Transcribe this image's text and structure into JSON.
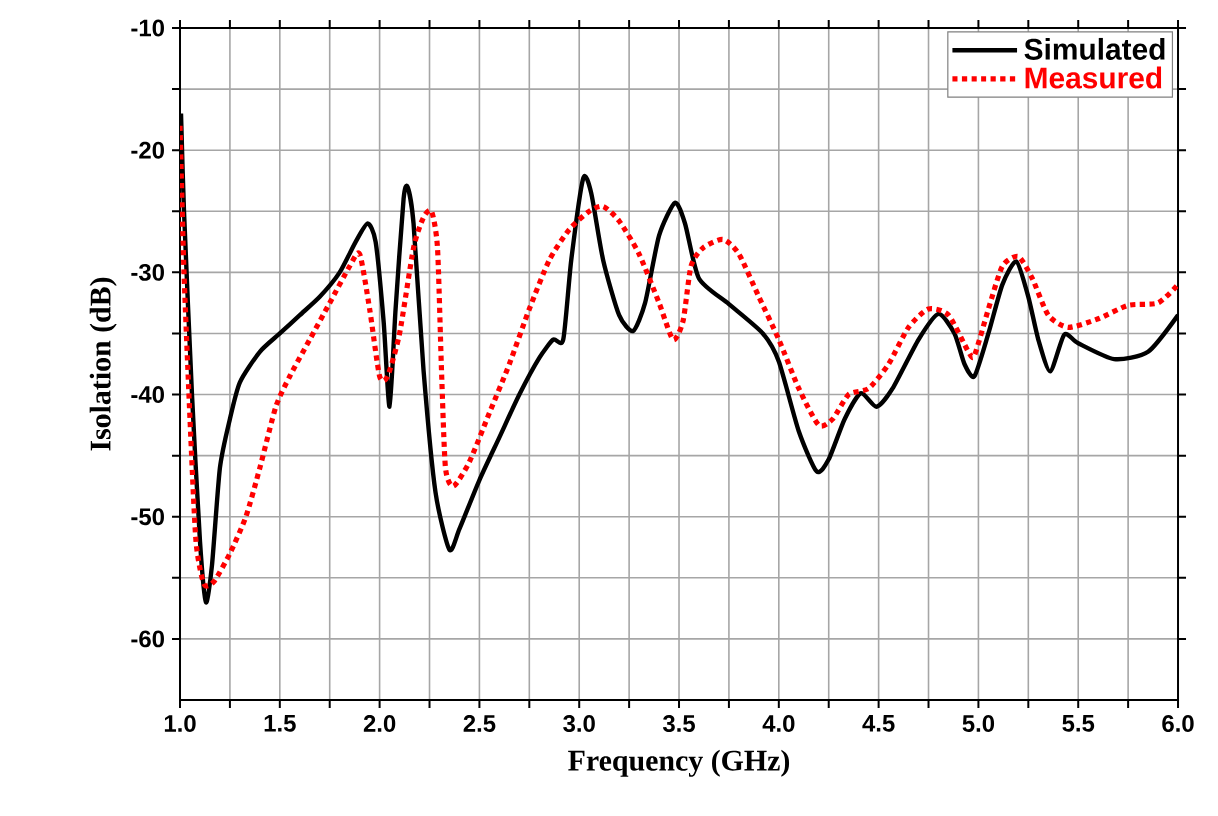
{
  "chart_data": {
    "type": "line",
    "xlabel": "Frequency (GHz)",
    "ylabel": "Isolation (dB)",
    "xlim": [
      1.0,
      6.0
    ],
    "ylim": [
      -65,
      -10
    ],
    "xticks": [
      {
        "value": 1.0,
        "label": "1.0"
      },
      {
        "value": 1.25,
        "label": null
      },
      1.5,
      {
        "value": 1.75,
        "label": null
      },
      {
        "value": 2.0,
        "label": "2.0"
      },
      {
        "value": 2.25,
        "label": null
      },
      2.5,
      {
        "value": 2.75,
        "label": null
      },
      {
        "value": 3.0,
        "label": "3.0"
      },
      {
        "value": 3.25,
        "label": null
      },
      3.5,
      {
        "value": 3.75,
        "label": null
      },
      {
        "value": 4.0,
        "label": "4.0"
      },
      {
        "value": 4.25,
        "label": null
      },
      4.5,
      {
        "value": 4.75,
        "label": null
      },
      {
        "value": 5.0,
        "label": "5.0"
      },
      {
        "value": 5.25,
        "label": null
      },
      5.5,
      {
        "value": 5.75,
        "label": null
      },
      {
        "value": 6.0,
        "label": "6.0"
      }
    ],
    "yticks": [
      -60,
      {
        "value": -55,
        "label": null
      },
      -50,
      {
        "value": -45,
        "label": null
      },
      -40,
      {
        "value": -35,
        "label": null
      },
      -30,
      {
        "value": -25,
        "label": null
      },
      -20,
      {
        "value": -15,
        "label": null
      },
      -10
    ],
    "grid": true,
    "legend": "top right",
    "series": [
      {
        "name": "Simulated",
        "color": "#000000",
        "line_style": "solid",
        "x": [
          1.005,
          1.02,
          1.06,
          1.1,
          1.13,
          1.16,
          1.2,
          1.25,
          1.3,
          1.4,
          1.5,
          1.6,
          1.7,
          1.8,
          1.88,
          1.94,
          1.98,
          2.02,
          2.05,
          2.08,
          2.12,
          2.14,
          2.17,
          2.22,
          2.28,
          2.35,
          2.4,
          2.5,
          2.6,
          2.7,
          2.8,
          2.87,
          2.92,
          2.96,
          3.02,
          3.06,
          3.12,
          3.2,
          3.27,
          3.33,
          3.4,
          3.48,
          3.53,
          3.6,
          3.75,
          3.92,
          4.0,
          4.1,
          4.19,
          4.25,
          4.33,
          4.41,
          4.49,
          4.57,
          4.7,
          4.8,
          4.88,
          4.93,
          4.98,
          5.05,
          5.12,
          5.19,
          5.25,
          5.3,
          5.36,
          5.43,
          5.5,
          5.68,
          5.85,
          6.0
        ],
        "values": [
          -17,
          -25,
          -40,
          -52,
          -57,
          -54,
          -46,
          -42,
          -39,
          -36.5,
          -35,
          -33.5,
          -32,
          -30,
          -27.5,
          -26,
          -27.5,
          -34,
          -41,
          -33,
          -24,
          -23,
          -26,
          -38,
          -48,
          -52.7,
          -51,
          -47,
          -43.5,
          -40,
          -37,
          -35.5,
          -35.5,
          -29,
          -22.3,
          -23.5,
          -29,
          -33.5,
          -34.8,
          -32.5,
          -27,
          -24.3,
          -26,
          -30.5,
          -32.6,
          -35,
          -37.3,
          -43,
          -46.3,
          -45.3,
          -42,
          -39.9,
          -41,
          -39.5,
          -35.5,
          -33.4,
          -35,
          -37.5,
          -38.5,
          -35,
          -31,
          -29.1,
          -32,
          -35.5,
          -38.1,
          -35.1,
          -35.8,
          -37.1,
          -36.5,
          -33.5
        ]
      },
      {
        "name": "Measured",
        "color": "#ff0000",
        "line_style": "dotted",
        "x": [
          1.0,
          1.02,
          1.05,
          1.08,
          1.12,
          1.17,
          1.25,
          1.33,
          1.4,
          1.48,
          1.55,
          1.65,
          1.75,
          1.85,
          1.9,
          1.95,
          2.0,
          2.04,
          2.1,
          2.17,
          2.22,
          2.26,
          2.29,
          2.31,
          2.33,
          2.37,
          2.45,
          2.55,
          2.65,
          2.75,
          2.85,
          2.95,
          3.05,
          3.12,
          3.2,
          3.3,
          3.4,
          3.47,
          3.52,
          3.56,
          3.62,
          3.72,
          3.8,
          3.9,
          4.0,
          4.1,
          4.2,
          4.27,
          4.35,
          4.45,
          4.55,
          4.65,
          4.75,
          4.85,
          4.95,
          4.98,
          5.05,
          5.12,
          5.2,
          5.27,
          5.35,
          5.45,
          5.6,
          5.75,
          5.9,
          6.0
        ],
        "values": [
          -18,
          -30,
          -42,
          -52,
          -55.5,
          -55.3,
          -53,
          -50,
          -46,
          -41,
          -38.5,
          -35.5,
          -32.5,
          -29.5,
          -28.5,
          -33,
          -38.5,
          -38.5,
          -35,
          -28,
          -25.5,
          -25,
          -28,
          -38,
          -46,
          -47.5,
          -45.5,
          -41.5,
          -37.5,
          -33,
          -29,
          -26.5,
          -25,
          -24.6,
          -25.8,
          -28.5,
          -32.5,
          -35.5,
          -34,
          -29.5,
          -28,
          -27.3,
          -28.5,
          -32,
          -35.5,
          -39.5,
          -42.5,
          -42,
          -40,
          -39.5,
          -37.5,
          -34.5,
          -33,
          -33.5,
          -36.5,
          -36.8,
          -33,
          -29.5,
          -28.7,
          -30.5,
          -33.5,
          -34.5,
          -33.8,
          -32.7,
          -32.5,
          -31
        ]
      }
    ]
  }
}
